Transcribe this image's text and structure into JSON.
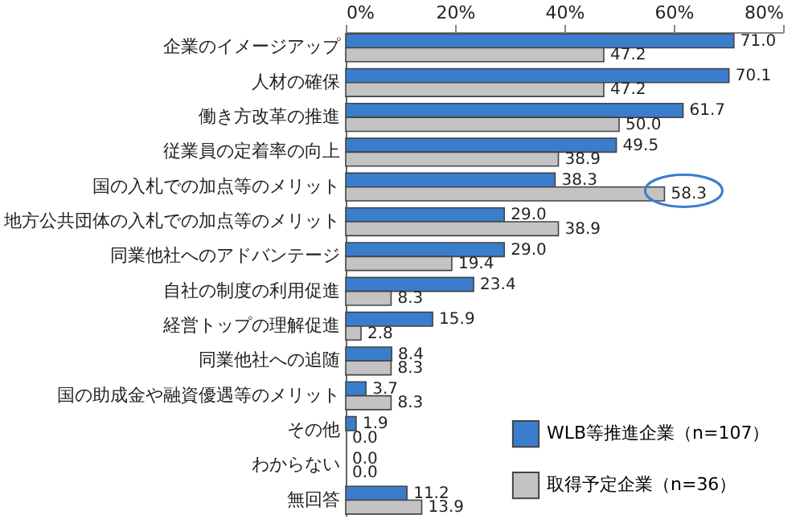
{
  "chart_data": {
    "type": "bar",
    "orientation": "horizontal",
    "categories": [
      "企業のイメージアップ",
      "人材の確保",
      "働き方改革の推進",
      "従業員の定着率の向上",
      "国の入札での加点等のメリット",
      "地方公共団体の入札での加点等のメリット",
      "同業他社へのアドバンテージ",
      "自社の制度の利用促進",
      "経営トップの理解促進",
      "同業他社への追随",
      "国の助成金や融資優遇等のメリット",
      "その他",
      "わからない",
      "無回答"
    ],
    "series": [
      {
        "name": "WLB等推進企業（n=107）",
        "color": "#3a7dcc",
        "values": [
          71.0,
          70.1,
          61.7,
          49.5,
          38.3,
          29.0,
          29.0,
          23.4,
          15.9,
          8.4,
          3.7,
          1.9,
          0.0,
          11.2
        ],
        "value_labels": [
          "71.0",
          "70.1",
          "61.7",
          "49.5",
          "38.3",
          "29.0",
          "29.0",
          "23.4",
          "15.9",
          "8.4",
          "3.7",
          "1.9",
          "0.0",
          "11.2"
        ]
      },
      {
        "name": "取得予定企業（n=36）",
        "color": "#c3c3c3",
        "values": [
          47.2,
          47.2,
          50.0,
          38.9,
          58.3,
          38.9,
          19.4,
          8.3,
          2.8,
          8.3,
          8.3,
          0.0,
          0.0,
          13.9
        ],
        "value_labels": [
          "47.2",
          "47.2",
          "50.0",
          "38.9",
          "58.3",
          "38.9",
          "19.4",
          "8.3",
          "2.8",
          "8.3",
          "8.3",
          "0.0",
          "0.0",
          "13.9"
        ]
      }
    ],
    "xlim": [
      0,
      80
    ],
    "xticks": [
      {
        "value": 0,
        "label": "0%"
      },
      {
        "value": 20,
        "label": "20%"
      },
      {
        "value": 40,
        "label": "40%"
      },
      {
        "value": 60,
        "label": "60%"
      },
      {
        "value": 80,
        "label": "80%"
      }
    ],
    "legend": "bottom right",
    "grid": false
  }
}
